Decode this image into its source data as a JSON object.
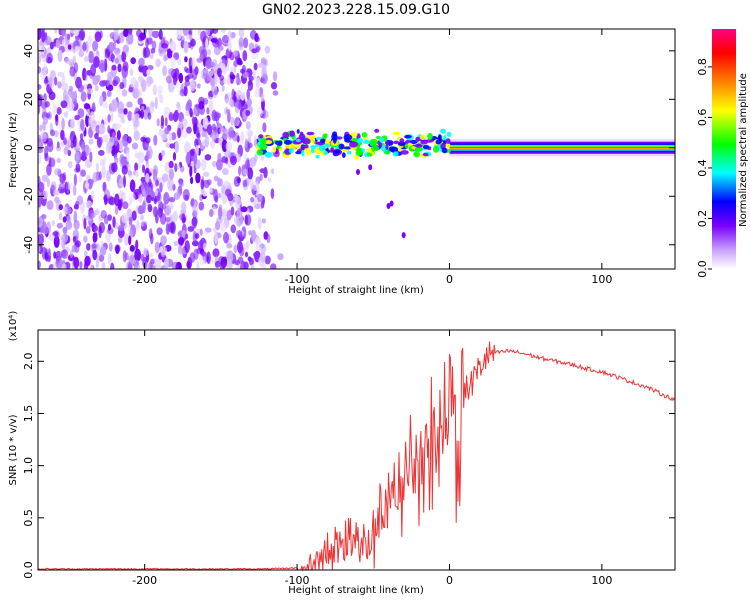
{
  "title": "GN02.2023.228.15.09.G10",
  "chart_data": [
    {
      "type": "heatmap",
      "xlabel": "Height of straight line (km)",
      "ylabel": "Frequency (Hz)",
      "xlim": [
        -270,
        148
      ],
      "ylim": [
        -50,
        49
      ],
      "xticks": [
        -200,
        -100,
        0,
        100
      ],
      "yticks": [
        -40,
        -20,
        0,
        20,
        40
      ],
      "colorbar": {
        "label": "Normalized spectral amplitude",
        "range": [
          0,
          0.95
        ],
        "ticks": [
          0.0,
          0.2,
          0.4,
          0.6,
          0.8
        ],
        "colors": [
          "#ffffff",
          "#7a00ff",
          "#0000ff",
          "#00ffff",
          "#00ff00",
          "#ffff00",
          "#ff8000",
          "#ff0000",
          "#ff0080"
        ]
      },
      "noise_region_x": [
        -270,
        -110
      ],
      "carrier_line_hz": 0,
      "grid": false
    },
    {
      "type": "line",
      "xlabel": "Height of straight line (km)",
      "ylabel": "SNR (10 * v/v)",
      "y_scale_label": "(x10⁴)",
      "xlim": [
        -270,
        148
      ],
      "ylim": [
        0,
        2.3
      ],
      "xticks": [
        -200,
        -100,
        0,
        100
      ],
      "yticks": [
        0.0,
        0.5,
        1.0,
        1.5,
        2.0
      ],
      "color": "#ee3333",
      "series": [
        {
          "x": [
            -270,
            -250,
            -200,
            -150,
            -120,
            -100,
            -95,
            -90,
            -85,
            -80,
            -75,
            -70,
            -65,
            -60,
            -55,
            -50,
            -45,
            -40,
            -35,
            -30,
            -25,
            -20,
            -15,
            -10,
            -5,
            -2,
            0,
            2,
            5,
            8,
            10,
            15,
            20,
            25,
            30,
            40,
            50,
            60,
            70,
            80,
            90,
            100,
            110,
            120,
            130,
            140,
            148
          ],
          "y": [
            0.01,
            0.01,
            0.01,
            0.01,
            0.01,
            0.02,
            0.05,
            0.1,
            0.18,
            0.25,
            0.3,
            0.35,
            0.4,
            0.45,
            0.5,
            0.55,
            0.65,
            0.8,
            0.95,
            1.1,
            1.2,
            1.3,
            1.4,
            1.45,
            1.6,
            1.9,
            2.05,
            1.8,
            1.5,
            1.6,
            1.7,
            1.8,
            1.95,
            2.05,
            2.08,
            2.1,
            2.07,
            2.03,
            2.0,
            1.97,
            1.93,
            1.9,
            1.85,
            1.8,
            1.75,
            1.68,
            1.63
          ]
        }
      ]
    }
  ]
}
